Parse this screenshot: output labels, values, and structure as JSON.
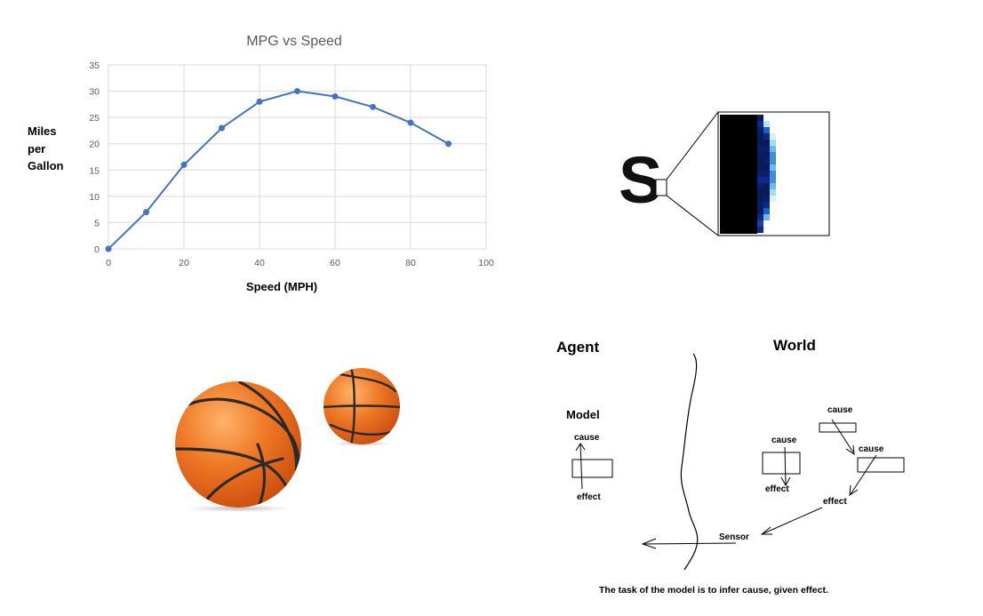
{
  "chart": {
    "title": "MPG vs Speed",
    "ylabel_lines": [
      "Miles",
      "per",
      "Gallon"
    ],
    "xlabel": "Speed (MPH)"
  },
  "chart_data": {
    "type": "line",
    "title": "MPG vs Speed",
    "xlabel": "Speed (MPH)",
    "ylabel": "Miles per Gallon",
    "x": [
      0,
      10,
      20,
      30,
      40,
      50,
      60,
      70,
      80,
      90
    ],
    "series": [
      {
        "values": [
          0,
          7,
          16,
          23,
          28,
          30,
          29,
          27,
          24,
          20
        ],
        "color": "#4472C4"
      }
    ],
    "xlim": [
      0,
      100
    ],
    "ylim": [
      0,
      35
    ],
    "xticks": [
      0,
      20,
      40,
      60,
      80,
      100
    ],
    "yticks": [
      0,
      5,
      10,
      15,
      20,
      25,
      30,
      35
    ],
    "grid": true,
    "legend": "none"
  },
  "pixel_zoom": {
    "letter": "S"
  },
  "balls": {
    "icon": "basketball-icon",
    "color": "#E8671B",
    "seam_color": "#2a2a2a"
  },
  "diagram": {
    "agent_label": "Agent",
    "world_label": "World",
    "model_label": "Model",
    "cause_label": "cause",
    "effect_label": "effect",
    "sensor_label": "Sensor",
    "caption": "The task of the model is to infer cause, given effect."
  }
}
